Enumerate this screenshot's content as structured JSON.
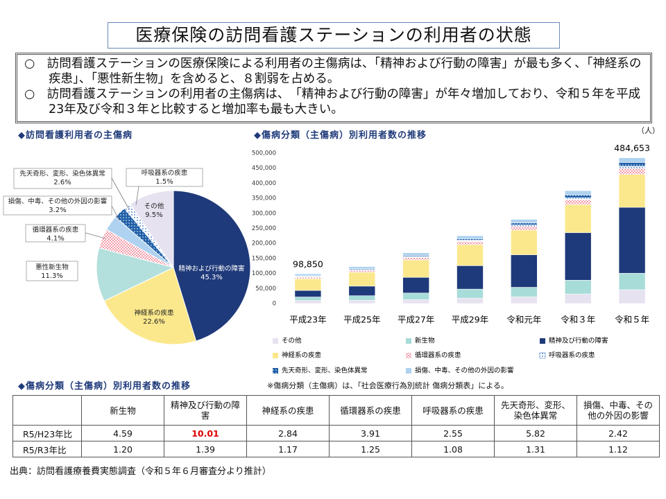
{
  "header": {
    "title": "医療保険の訪問看護ステーションの利用者の状態"
  },
  "notes": [
    "○　訪問看護ステーションの医療保険による利用者の主傷病は、「精神および行動の障害」が最も多く、「神経系の疾患」、「悪性新生物」を含めると、８割弱を占める。",
    "○　訪問看護ステーションの利用者の主傷病は、　「精神および行動の障害」が年々増加しており、令和５年を平成23年及び令和３年と比較すると増加率も最も大きい。"
  ],
  "chart_data": [
    {
      "type": "pie",
      "title": "◆訪問看護利用者の主傷病",
      "categories": [
        "精神および行動の障害",
        "神経系の疾患",
        "悪性新生物",
        "循環器系の疾患",
        "損傷、中毒、その他の外因の影響",
        "先天奇形、変形、染色体異常",
        "呼吸器系の疾患",
        "その他"
      ],
      "values": [
        45.3,
        22.6,
        11.3,
        4.1,
        3.2,
        2.6,
        1.5,
        9.5
      ],
      "value_labels": [
        "45.3%",
        "22.6%",
        "11.3%",
        "4.1%",
        "3.2%",
        "2.6%",
        "1.5%",
        "9.5%"
      ],
      "colors": [
        "#1f3a7a",
        "#fbe88c",
        "#b3e0dc",
        "#f29aa8",
        "#aed2ef",
        "#1f5fa8",
        "#2e6fc0",
        "#e6e2f0"
      ],
      "patterns": [
        "solid",
        "solid",
        "solid",
        "checker",
        "solid",
        "dots-on",
        "dots",
        "solid"
      ]
    },
    {
      "type": "stacked_bar",
      "title": "◆傷病分類（主傷病）別利用者数の推移",
      "y_unit": "（人）",
      "categories": [
        "平成23年",
        "平成25年",
        "平成27年",
        "平成29年",
        "令和元年",
        "令和３年",
        "令和５年"
      ],
      "ylim": [
        0,
        500000
      ],
      "yticks": [
        0,
        {
          "value": 50000,
          "label": "50,000"
        },
        {
          "value": 100000,
          "label": "100,000"
        },
        {
          "value": 150000,
          "label": "150,000"
        },
        {
          "value": 200000,
          "label": "200,000"
        },
        {
          "value": 250000,
          "label": "250,000"
        },
        {
          "value": 300000,
          "label": "300,000"
        },
        {
          "value": 350000,
          "label": "350,000"
        },
        {
          "value": 400000,
          "label": "400,000"
        },
        {
          "value": 450000,
          "label": "450,000"
        },
        {
          "value": 500000,
          "label": "500,000"
        }
      ],
      "grid": false,
      "total_labels": [
        "98,850",
        "484,653"
      ],
      "series": [
        {
          "name": "その他",
          "color": "#e6e2f0",
          "pattern": "solid",
          "values": [
            9900,
            11000,
            13000,
            18000,
            22000,
            32000,
            46000
          ]
        },
        {
          "name": "新生物",
          "color": "#a8dcd8",
          "pattern": "solid",
          "values": [
            11900,
            15000,
            22000,
            30000,
            32000,
            45700,
            54800
          ]
        },
        {
          "name": "精神及び行動の障害",
          "color": "#1f3a7a",
          "pattern": "solid",
          "values": [
            21900,
            32000,
            52000,
            78000,
            108000,
            157900,
            219000
          ]
        },
        {
          "name": "神経系の疾患",
          "color": "#fbe88c",
          "pattern": "solid",
          "values": [
            38600,
            46000,
            58000,
            70000,
            82000,
            93600,
            109500
          ]
        },
        {
          "name": "循環器系の疾患",
          "color": "#f29aa8",
          "pattern": "checker",
          "values": [
            5100,
            6000,
            8000,
            10000,
            12000,
            15900,
            19900
          ]
        },
        {
          "name": "呼吸器系の疾患",
          "color": "#2e6fc0",
          "pattern": "dots",
          "values": [
            2900,
            3000,
            3800,
            4500,
            5500,
            6800,
            7300
          ]
        },
        {
          "name": "先天奇形、変形、染色体異常",
          "color": "#1f5fa8",
          "pattern": "dots-on",
          "values": [
            2200,
            2500,
            3500,
            5000,
            7000,
            9600,
            12600
          ]
        },
        {
          "name": "損傷、中毒、その他の外因の影響",
          "color": "#aed2ef",
          "pattern": "solid",
          "values": [
            6400,
            7500,
            8700,
            10000,
            11500,
            13800,
            15500
          ]
        }
      ]
    }
  ],
  "table": {
    "title": "◆傷病分類（主傷病）別利用者数の推移",
    "note": "※傷病分類（主傷病）は、「社会医療行為別統計 傷病分類表」による。",
    "columns": [
      "新生物",
      "精神及び行動の障害",
      "神経系の疾患",
      "循環器系の疾患",
      "呼吸器系の疾患",
      "先天奇形、変形、染色体異常",
      "損傷、中毒、その他の外因の影響"
    ],
    "rows": [
      {
        "label": "R5/H23年比",
        "cells": [
          "4.59",
          "10.01",
          "2.84",
          "3.91",
          "2.55",
          "5.82",
          "2.42"
        ]
      },
      {
        "label": "R5/R3年比",
        "cells": [
          "1.20",
          "1.39",
          "1.17",
          "1.25",
          "1.08",
          "1.31",
          "1.12"
        ]
      }
    ]
  },
  "source": "出典：訪問看護療養費実態調査（令和５年６月審査分より推計）"
}
